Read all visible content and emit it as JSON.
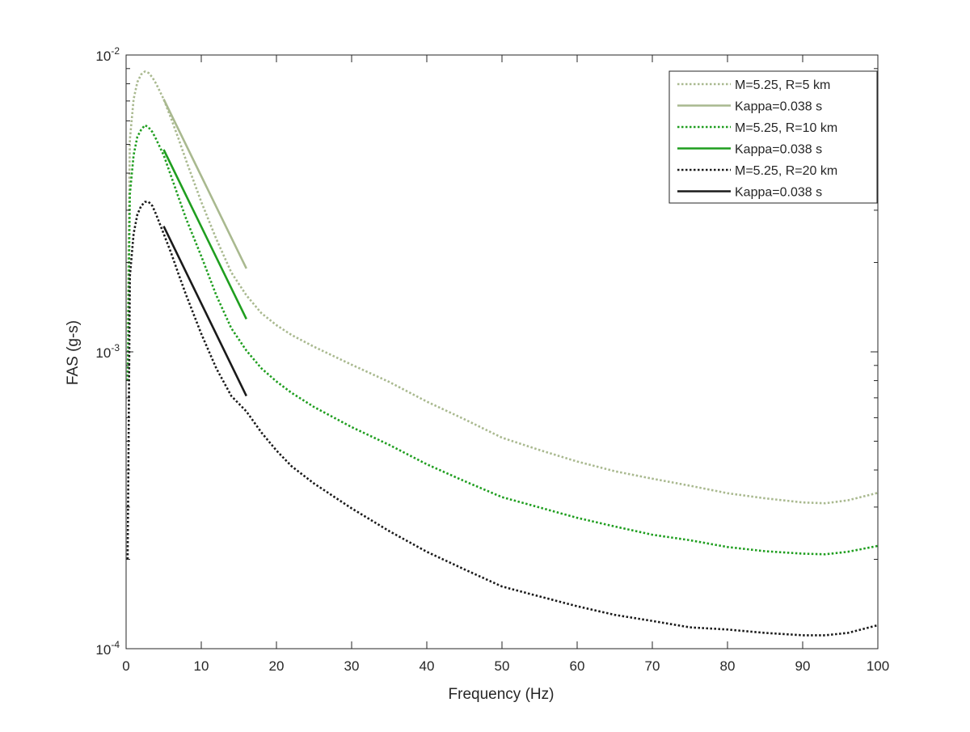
{
  "chart_data": {
    "type": "line",
    "title": "",
    "xlabel": "Frequency (Hz)",
    "ylabel": "FAS (g-s)",
    "xlim": [
      0,
      100
    ],
    "ylim": [
      0.0001,
      0.01
    ],
    "yscale": "log",
    "grid": false,
    "legend_position": "top-right",
    "x_ticks": [
      0,
      10,
      20,
      30,
      40,
      50,
      60,
      70,
      80,
      90,
      100
    ],
    "x_tick_labels": [
      "0",
      "10",
      "20",
      "30",
      "40",
      "50",
      "60",
      "70",
      "80",
      "90",
      "100"
    ],
    "y_ticks": [
      {
        "value": 0.0001,
        "base": "10",
        "exp": "-4"
      },
      {
        "value": 0.001,
        "base": "10",
        "exp": "-3"
      },
      {
        "value": 0.01,
        "base": "10",
        "exp": "-2"
      }
    ],
    "series": [
      {
        "name": "M=5.25, R=5 km",
        "color": "#a9b98f",
        "style": "dotted",
        "x": [
          0.2,
          0.5,
          1,
          1.5,
          2,
          2.5,
          3,
          3.5,
          4,
          5,
          6,
          7,
          8,
          10,
          12,
          14,
          16,
          18,
          20,
          22,
          25,
          30,
          35,
          40,
          45,
          50,
          55,
          60,
          65,
          70,
          75,
          80,
          85,
          90,
          93,
          96,
          100
        ],
        "y": [
          0.0012,
          0.0052,
          0.0071,
          0.0081,
          0.0086,
          0.0088,
          0.0087,
          0.0084,
          0.008,
          0.0071,
          0.0061,
          0.0052,
          0.0044,
          0.0032,
          0.0024,
          0.00185,
          0.00155,
          0.00135,
          0.00123,
          0.00114,
          0.00104,
          0.000905,
          0.000792,
          0.00068,
          0.000593,
          0.000514,
          0.000467,
          0.000427,
          0.000396,
          0.000374,
          0.000354,
          0.000334,
          0.000321,
          0.000311,
          0.000309,
          0.000316,
          0.000335
        ]
      },
      {
        "name": "Kappa=0.038 s",
        "color": "#a9b98f",
        "style": "solid",
        "x": [
          5,
          16
        ],
        "y": [
          0.0071,
          0.00191
        ]
      },
      {
        "name": "M=5.25, R=10 km",
        "color": "#1f9e1f",
        "style": "dotted",
        "x": [
          0.2,
          0.5,
          1,
          1.5,
          2,
          2.5,
          3,
          3.5,
          4,
          5,
          6,
          7,
          8,
          10,
          12,
          14,
          16,
          18,
          20,
          22,
          25,
          30,
          35,
          40,
          45,
          50,
          55,
          60,
          65,
          70,
          75,
          80,
          85,
          90,
          93,
          96,
          100
        ],
        "y": [
          0.0008,
          0.0034,
          0.0046,
          0.0053,
          0.0056,
          0.0058,
          0.0057,
          0.0055,
          0.0052,
          0.0046,
          0.0039,
          0.0033,
          0.0028,
          0.0021,
          0.00155,
          0.0012,
          0.00101,
          0.00088,
          0.000795,
          0.000728,
          0.000652,
          0.000558,
          0.000486,
          0.000418,
          0.000367,
          0.000324,
          0.000299,
          0.000276,
          0.000258,
          0.000242,
          0.000232,
          0.00022,
          0.000213,
          0.000209,
          0.000208,
          0.000212,
          0.000222
        ]
      },
      {
        "name": "Kappa=0.038 s",
        "color": "#1f9e1f",
        "style": "solid",
        "x": [
          5,
          16
        ],
        "y": [
          0.0048,
          0.00129
        ]
      },
      {
        "name": "M=5.25, R=20 km",
        "color": "#1a1a1a",
        "style": "dotted",
        "x": [
          0.2,
          0.5,
          1,
          1.5,
          2,
          2.5,
          3,
          3.5,
          4,
          5,
          6,
          7,
          8,
          10,
          12,
          14,
          16,
          18,
          20,
          22,
          25,
          30,
          35,
          40,
          45,
          50,
          55,
          60,
          65,
          70,
          75,
          80,
          85,
          90,
          93,
          96,
          100
        ],
        "y": [
          0.0002,
          0.0018,
          0.0025,
          0.0029,
          0.0031,
          0.0032,
          0.0032,
          0.0031,
          0.0029,
          0.0025,
          0.00215,
          0.00182,
          0.00155,
          0.00115,
          0.00088,
          0.00071,
          0.00063,
          0.000535,
          0.000465,
          0.000412,
          0.00036,
          0.000297,
          0.000249,
          0.000212,
          0.000185,
          0.000162,
          0.00015,
          0.000139,
          0.00013,
          0.000124,
          0.000118,
          0.000116,
          0.000113,
          0.000111,
          0.000111,
          0.000113,
          0.00012
        ]
      },
      {
        "name": "Kappa=0.038 s",
        "color": "#1a1a1a",
        "style": "solid",
        "x": [
          5,
          16
        ],
        "y": [
          0.00265,
          0.00071
        ]
      }
    ]
  }
}
